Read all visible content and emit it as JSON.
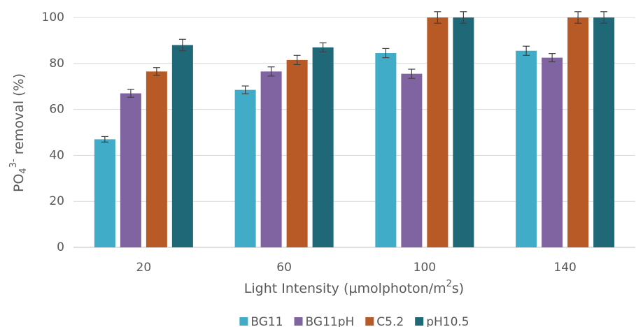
{
  "chart_data": {
    "type": "bar",
    "y_label": {
      "text": "PO",
      "sub": "4",
      "sup": "3-",
      "rest": " removal (%)"
    },
    "x_label": {
      "text": "Light Intensity (µmolphoton/m",
      "sup": "2",
      "rest": "s)"
    },
    "categories": [
      "20",
      "60",
      "100",
      "140"
    ],
    "series": [
      {
        "name": "BG11",
        "color": "#41acc7",
        "values": [
          47,
          68.5,
          84.5,
          85.5
        ],
        "errors": [
          1.2,
          1.7,
          2,
          2
        ]
      },
      {
        "name": "BG11pH",
        "color": "#8064a2",
        "values": [
          67,
          76.5,
          75.5,
          82.5
        ],
        "errors": [
          1.7,
          2,
          2,
          1.8
        ]
      },
      {
        "name": "C5.2",
        "color": "#b85a26",
        "values": [
          76.5,
          81.5,
          100,
          100
        ],
        "errors": [
          1.7,
          2,
          2.5,
          2.5
        ]
      },
      {
        "name": "pH10.5",
        "color": "#1f6878",
        "values": [
          88,
          87,
          100,
          100
        ],
        "errors": [
          2.5,
          2,
          2.5,
          2.5
        ]
      }
    ],
    "ylim": [
      0,
      100
    ],
    "yticks": [
      0,
      20,
      40,
      60,
      80,
      100
    ],
    "grid": true,
    "legend": "bottom"
  }
}
